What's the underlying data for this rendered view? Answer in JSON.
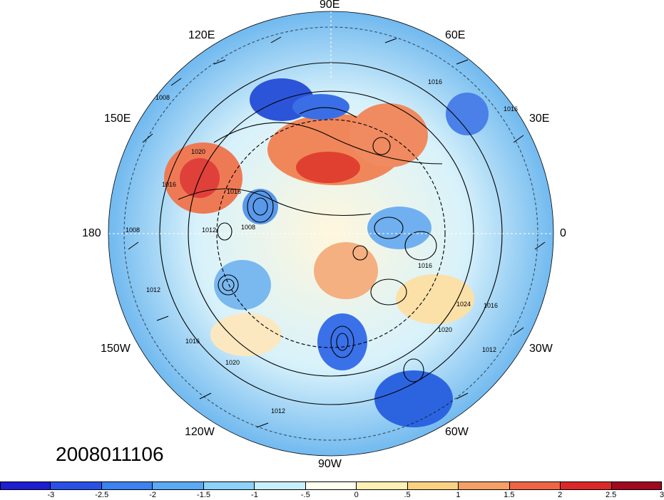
{
  "timestamp": "2008011106",
  "longitude_labels": {
    "n90e": "90E",
    "n60e": "60E",
    "n120e": "120E",
    "n30e": "30E",
    "n150e": "150E",
    "n0": "0",
    "n180": "180",
    "n30w": "30W",
    "n150w": "150W",
    "n60w": "60W",
    "n120w": "120W",
    "n90w": "90W"
  },
  "contour_labels": [
    "1008",
    "1012",
    "1016",
    "1020",
    "1016",
    "1016",
    "1016",
    "1012",
    "1008",
    "1016",
    "1020",
    "1024",
    "1016",
    "1012",
    "1012",
    "1016",
    "1020",
    "1008"
  ],
  "colorbar": {
    "colors": [
      "#1e1ed2",
      "#2a50e6",
      "#3c82f0",
      "#5aaaf5",
      "#8cd2fa",
      "#c8f0fc",
      "#fffff0",
      "#fff0b4",
      "#fad282",
      "#f5a064",
      "#f06446",
      "#dc2828",
      "#a00a1e"
    ],
    "tick_labels": [
      "-3",
      "-2.5",
      "-2",
      "-1.5",
      "-1",
      "-.5",
      "0",
      ".5",
      "1",
      "1.5",
      "2",
      "2.5",
      "3"
    ]
  }
}
